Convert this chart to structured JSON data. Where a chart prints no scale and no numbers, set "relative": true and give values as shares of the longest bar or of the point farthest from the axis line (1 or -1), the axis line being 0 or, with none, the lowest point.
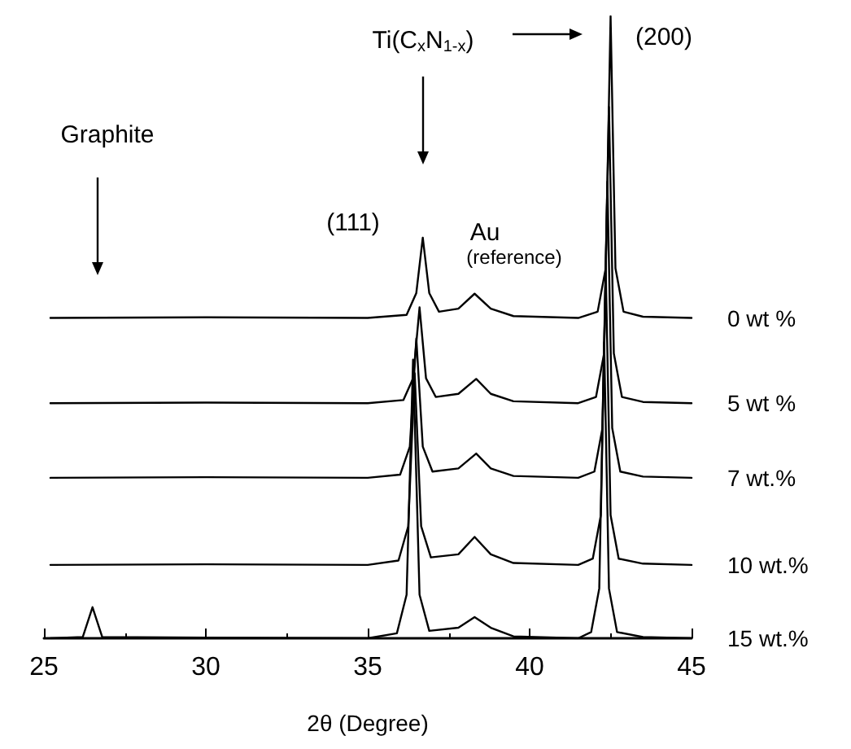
{
  "chart_data": {
    "type": "line",
    "relative": true,
    "xlabel": "2θ (Degree)",
    "xlim": [
      25,
      45
    ],
    "xticks": [
      25,
      30,
      35,
      40,
      45
    ],
    "legend": false,
    "grid": false,
    "marker": "none",
    "line_style": "solid",
    "annotations": [
      "Graphite",
      "Ti(C$_{x}$N$_{1-x}$)",
      "(111)",
      "Au",
      "(reference)",
      "(200)"
    ],
    "series": [
      {
        "name": "0 wt %",
        "color": "#000000",
        "x": [
          25.2,
          30,
          35,
          36.2,
          36.5,
          36.7,
          36.9,
          37.2,
          37.8,
          38.3,
          38.8,
          39.5,
          41.5,
          42.1,
          42.35,
          42.5,
          42.65,
          42.9,
          43.5,
          45
        ],
        "values": [
          0.515,
          0.516,
          0.515,
          0.52,
          0.555,
          0.644,
          0.555,
          0.525,
          0.53,
          0.554,
          0.53,
          0.518,
          0.515,
          0.525,
          0.595,
          1.0,
          0.595,
          0.525,
          0.517,
          0.515
        ]
      },
      {
        "name": "5 wt %",
        "color": "#000000",
        "x": [
          25.2,
          30,
          35,
          36.1,
          36.4,
          36.6,
          36.8,
          37.1,
          37.8,
          38.35,
          38.8,
          39.5,
          41.5,
          42.05,
          42.3,
          42.45,
          42.6,
          42.85,
          43.5,
          45
        ],
        "values": [
          0.378,
          0.379,
          0.378,
          0.383,
          0.418,
          0.532,
          0.418,
          0.388,
          0.393,
          0.417,
          0.393,
          0.381,
          0.378,
          0.388,
          0.458,
          0.854,
          0.458,
          0.388,
          0.38,
          0.378
        ]
      },
      {
        "name": "7 wt.%",
        "color": "#000000",
        "x": [
          25.2,
          30,
          35,
          36.0,
          36.3,
          36.5,
          36.7,
          37.0,
          37.8,
          38.35,
          38.8,
          39.5,
          41.5,
          42.0,
          42.25,
          42.4,
          42.55,
          42.8,
          43.5,
          45
        ],
        "values": [
          0.258,
          0.259,
          0.258,
          0.263,
          0.308,
          0.482,
          0.308,
          0.268,
          0.273,
          0.297,
          0.273,
          0.261,
          0.258,
          0.268,
          0.338,
          0.734,
          0.338,
          0.268,
          0.26,
          0.258
        ]
      },
      {
        "name": "10 wt.%",
        "color": "#000000",
        "x": [
          25.2,
          30,
          35,
          35.95,
          36.25,
          36.45,
          36.65,
          36.95,
          37.8,
          38.3,
          38.8,
          39.5,
          41.5,
          41.95,
          42.2,
          42.35,
          42.5,
          42.75,
          43.5,
          45
        ],
        "values": [
          0.118,
          0.119,
          0.118,
          0.125,
          0.18,
          0.426,
          0.18,
          0.13,
          0.135,
          0.163,
          0.135,
          0.121,
          0.118,
          0.128,
          0.198,
          0.594,
          0.198,
          0.128,
          0.12,
          0.118
        ]
      },
      {
        "name": "15 wt.%",
        "color": "#000000",
        "x": [
          25.2,
          26.2,
          26.5,
          26.8,
          30,
          35,
          35.9,
          36.2,
          36.4,
          36.6,
          36.9,
          37.8,
          38.3,
          38.8,
          39.5,
          41.5,
          41.9,
          42.15,
          42.3,
          42.45,
          42.7,
          43.5,
          45
        ],
        "values": [
          0,
          0.002,
          0.05,
          0.002,
          0.001,
          0,
          0.008,
          0.07,
          0.448,
          0.07,
          0.012,
          0.017,
          0.034,
          0.017,
          0.003,
          0,
          0.01,
          0.08,
          0.476,
          0.08,
          0.01,
          0.002,
          0
        ]
      }
    ]
  }
}
